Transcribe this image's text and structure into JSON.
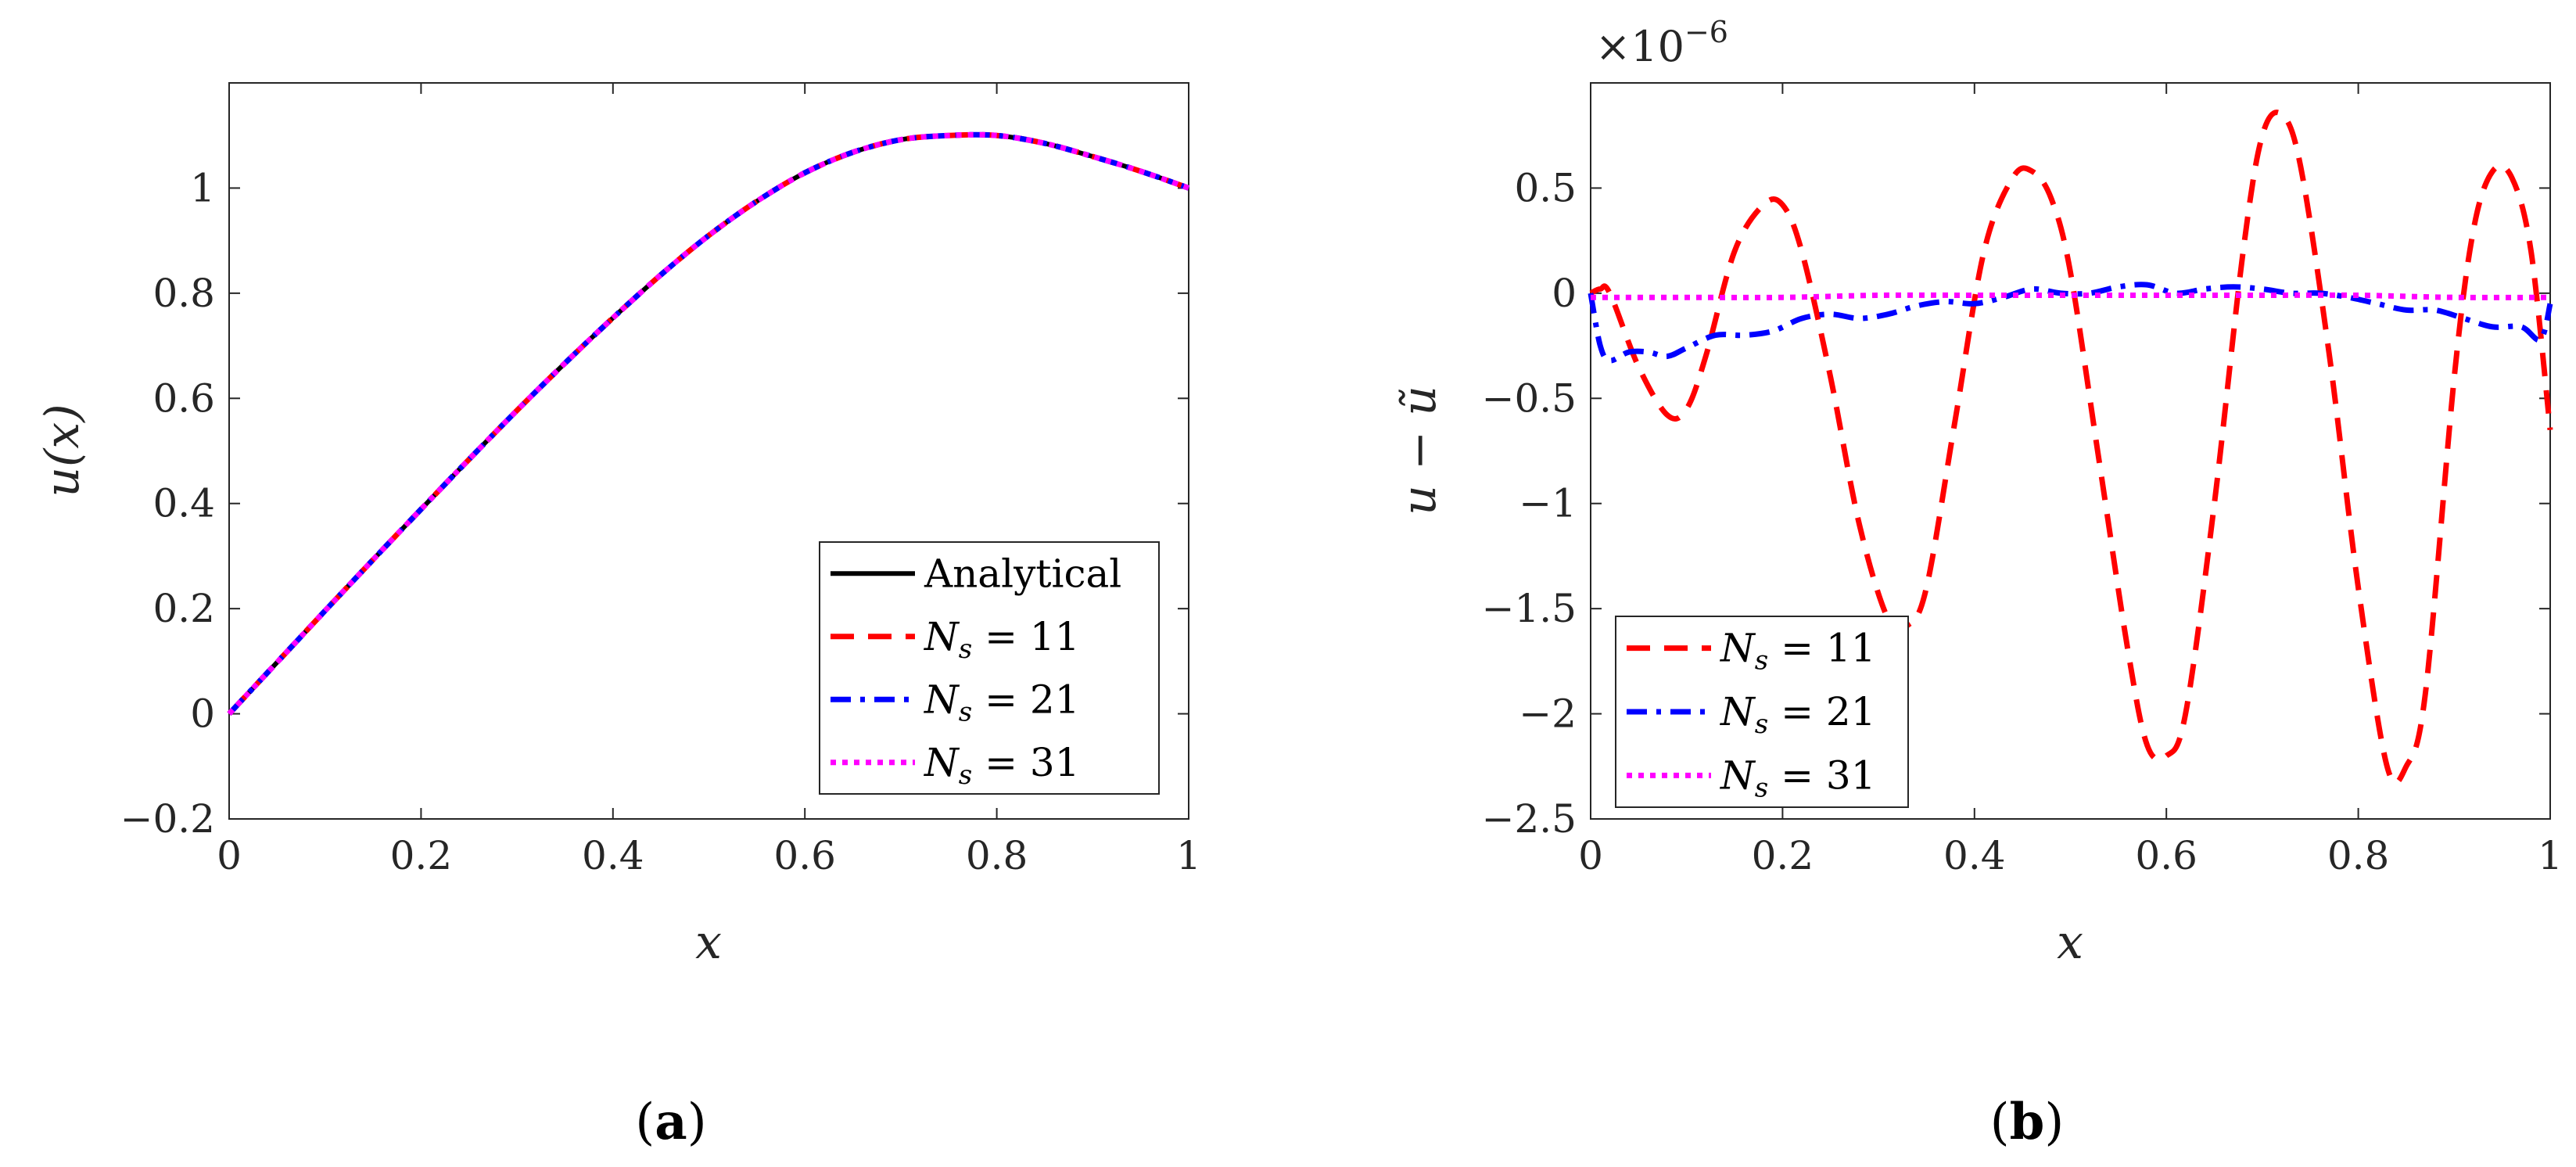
{
  "colors": {
    "analytical": "#000000",
    "ns11": "#ff0000",
    "ns21": "#0000ff",
    "ns31": "#ff00ff",
    "axis": "#262626"
  },
  "chart_data": [
    {
      "id": "a",
      "type": "line",
      "caption": {
        "open": "(",
        "letter": "a",
        "close": ")"
      },
      "xlabel": "x",
      "ylabel": "u(x)",
      "xlim": [
        0,
        1
      ],
      "ylim": [
        -0.2,
        1.2
      ],
      "xticks": [
        0,
        0.2,
        0.4,
        0.6,
        0.8,
        1
      ],
      "xtick_labels": [
        "0",
        "0.2",
        "0.4",
        "0.6",
        "0.8",
        "1"
      ],
      "yticks": [
        -0.2,
        0,
        0.2,
        0.4,
        0.6,
        0.8,
        1
      ],
      "ytick_labels": [
        "−0.2",
        "0",
        "0.2",
        "0.4",
        "0.6",
        "0.8",
        "1"
      ],
      "legend_position": "bottom-right",
      "x": [
        0,
        0.05,
        0.1,
        0.15,
        0.2,
        0.25,
        0.3,
        0.35,
        0.4,
        0.45,
        0.5,
        0.55,
        0.6,
        0.65,
        0.7,
        0.75,
        0.8,
        0.85,
        0.9,
        0.95,
        1
      ],
      "series": [
        {
          "name": "Analytical",
          "style": "solid",
          "values": [
            0,
            0.098,
            0.196,
            0.293,
            0.389,
            0.484,
            0.577,
            0.667,
            0.753,
            0.835,
            0.91,
            0.975,
            1.029,
            1.068,
            1.092,
            1.1,
            1.1,
            1.085,
            1.06,
            1.032,
            1.0
          ]
        },
        {
          "name": "N_s = 11",
          "label_main": "N",
          "label_sub": "s",
          "label_rest": " = 11",
          "style": "dashed",
          "values": [
            0,
            0.098,
            0.196,
            0.293,
            0.389,
            0.484,
            0.577,
            0.667,
            0.753,
            0.835,
            0.91,
            0.975,
            1.029,
            1.068,
            1.092,
            1.1,
            1.1,
            1.085,
            1.06,
            1.032,
            1.0
          ]
        },
        {
          "name": "N_s = 21",
          "label_main": "N",
          "label_sub": "s",
          "label_rest": " = 21",
          "style": "dashdot",
          "values": [
            0,
            0.098,
            0.196,
            0.293,
            0.389,
            0.484,
            0.577,
            0.667,
            0.753,
            0.835,
            0.91,
            0.975,
            1.029,
            1.068,
            1.092,
            1.1,
            1.1,
            1.085,
            1.06,
            1.032,
            1.0
          ]
        },
        {
          "name": "N_s = 31",
          "label_main": "N",
          "label_sub": "s",
          "label_rest": " = 31",
          "style": "dotted",
          "values": [
            0,
            0.098,
            0.196,
            0.293,
            0.389,
            0.484,
            0.577,
            0.667,
            0.753,
            0.835,
            0.91,
            0.975,
            1.029,
            1.068,
            1.092,
            1.1,
            1.1,
            1.085,
            1.06,
            1.032,
            1.0
          ]
        }
      ]
    },
    {
      "id": "b",
      "type": "line",
      "caption": {
        "open": "(",
        "letter": "b",
        "close": ")"
      },
      "xlabel": "x",
      "ylabel": "u − ũ",
      "y_exponent": {
        "base": "×10",
        "power": "−6"
      },
      "xlim": [
        0,
        1
      ],
      "ylim": [
        -2.5,
        1.0
      ],
      "xticks": [
        0,
        0.2,
        0.4,
        0.6,
        0.8,
        1
      ],
      "xtick_labels": [
        "0",
        "0.2",
        "0.4",
        "0.6",
        "0.8",
        "1"
      ],
      "yticks": [
        -2.5,
        -2,
        -1.5,
        -1,
        -0.5,
        0,
        0.5
      ],
      "ytick_labels": [
        "−2.5",
        "−2",
        "−1.5",
        "−1",
        "−0.5",
        "0",
        "0.5"
      ],
      "legend_position": "bottom-left",
      "series": [
        {
          "name": "N_s = 11",
          "label_main": "N",
          "label_sub": "s",
          "label_rest": " = 11",
          "style": "dashed",
          "x": [
            0,
            0.01,
            0.02,
            0.05,
            0.08,
            0.1,
            0.12,
            0.15,
            0.18,
            0.2,
            0.22,
            0.25,
            0.28,
            0.31,
            0.33,
            0.35,
            0.38,
            0.41,
            0.44,
            0.46,
            0.48,
            0.5,
            0.53,
            0.56,
            0.58,
            0.6,
            0.62,
            0.65,
            0.68,
            0.7,
            0.72,
            0.74,
            0.77,
            0.8,
            0.83,
            0.85,
            0.87,
            0.9,
            0.92,
            0.94,
            0.96,
            0.98,
            1
          ],
          "values": [
            0,
            0.02,
            0,
            -0.35,
            -0.58,
            -0.55,
            -0.3,
            0.2,
            0.42,
            0.42,
            0.2,
            -0.4,
            -1.1,
            -1.55,
            -1.58,
            -1.4,
            -0.6,
            0.2,
            0.55,
            0.58,
            0.45,
            0.1,
            -0.8,
            -1.7,
            -2.15,
            -2.2,
            -2.0,
            -1.0,
            0.2,
            0.75,
            0.85,
            0.6,
            -0.3,
            -1.4,
            -2.25,
            -2.25,
            -1.9,
            -0.4,
            0.3,
            0.58,
            0.55,
            0.2,
            -0.65
          ]
        },
        {
          "name": "N_s = 21",
          "label_main": "N",
          "label_sub": "s",
          "label_rest": " = 21",
          "style": "dashdot",
          "x": [
            0,
            0.01,
            0.02,
            0.04,
            0.06,
            0.08,
            0.1,
            0.13,
            0.16,
            0.19,
            0.22,
            0.25,
            0.28,
            0.31,
            0.34,
            0.37,
            0.4,
            0.43,
            0.46,
            0.49,
            0.52,
            0.55,
            0.58,
            0.61,
            0.64,
            0.67,
            0.7,
            0.73,
            0.76,
            0.79,
            0.82,
            0.85,
            0.88,
            0.91,
            0.94,
            0.97,
            0.99,
            1
          ],
          "values": [
            0,
            -0.25,
            -0.32,
            -0.28,
            -0.28,
            -0.3,
            -0.26,
            -0.2,
            -0.2,
            -0.18,
            -0.12,
            -0.1,
            -0.12,
            -0.1,
            -0.06,
            -0.04,
            -0.05,
            -0.02,
            0.02,
            0,
            0.0,
            0.03,
            0.04,
            0.0,
            0.02,
            0.03,
            0.02,
            0,
            0.0,
            -0.02,
            -0.05,
            -0.08,
            -0.08,
            -0.12,
            -0.16,
            -0.16,
            -0.22,
            -0.05
          ]
        },
        {
          "name": "N_s = 31",
          "label_main": "N",
          "label_sub": "s",
          "label_rest": " = 31",
          "style": "dotted",
          "x": [
            0,
            0.1,
            0.2,
            0.3,
            0.4,
            0.5,
            0.6,
            0.7,
            0.8,
            0.9,
            1
          ],
          "values": [
            -0.02,
            -0.02,
            -0.02,
            -0.01,
            -0.01,
            -0.01,
            -0.01,
            -0.01,
            -0.01,
            -0.02,
            -0.02
          ]
        }
      ]
    }
  ]
}
